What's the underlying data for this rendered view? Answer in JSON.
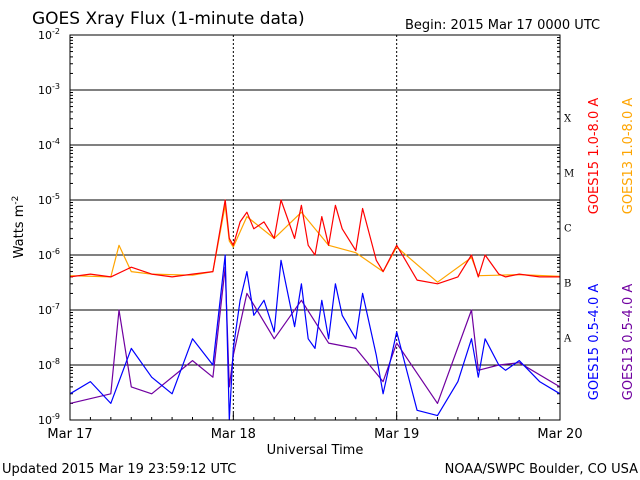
{
  "header": {
    "title": "GOES Xray Flux (1-minute data)",
    "begin": "Begin:  2015 Mar 17 0000 UTC"
  },
  "footer": {
    "updated": "Updated 2015 Mar 19 23:59:12 UTC",
    "credit": "NOAA/SWPC Boulder, CO USA"
  },
  "chart_data": {
    "type": "line",
    "title": "GOES Xray Flux (1-minute data)",
    "xlabel": "Universal Time",
    "ylabel": "Watts m",
    "ylabel_exponent": "-2",
    "yscale": "log",
    "ylim": [
      1e-09,
      0.01
    ],
    "xlim": [
      "2015-03-17T00:00",
      "2015-03-20T00:00"
    ],
    "x_ticks": [
      "Mar 17",
      "Mar 18",
      "Mar 19",
      "Mar 20"
    ],
    "y_ticks": [
      {
        "base": "10",
        "exp": "-2"
      },
      {
        "base": "10",
        "exp": "-3"
      },
      {
        "base": "10",
        "exp": "-4"
      },
      {
        "base": "10",
        "exp": "-5"
      },
      {
        "base": "10",
        "exp": "-6"
      },
      {
        "base": "10",
        "exp": "-7"
      },
      {
        "base": "10",
        "exp": "-8"
      },
      {
        "base": "10",
        "exp": "-9"
      }
    ],
    "flare_classes": [
      {
        "label": "X",
        "flux": 0.0001
      },
      {
        "label": "M",
        "flux": 1e-05
      },
      {
        "label": "C",
        "flux": 1e-06
      },
      {
        "label": "B",
        "flux": 1e-07
      },
      {
        "label": "A",
        "flux": 1e-08
      }
    ],
    "series": [
      {
        "name": "GOES15 1.0-8.0 A",
        "color": "#ff0000",
        "x": [
          "2015-03-17T00:00",
          "2015-03-17T03:00",
          "2015-03-17T06:00",
          "2015-03-17T09:00",
          "2015-03-17T12:00",
          "2015-03-17T15:00",
          "2015-03-17T18:00",
          "2015-03-17T21:00",
          "2015-03-17T22:48",
          "2015-03-17T23:24",
          "2015-03-18T00:00",
          "2015-03-18T01:00",
          "2015-03-18T02:00",
          "2015-03-18T03:00",
          "2015-03-18T04:30",
          "2015-03-18T06:00",
          "2015-03-18T07:00",
          "2015-03-18T09:00",
          "2015-03-18T10:00",
          "2015-03-18T11:00",
          "2015-03-18T12:00",
          "2015-03-18T13:00",
          "2015-03-18T14:00",
          "2015-03-18T15:00",
          "2015-03-18T16:00",
          "2015-03-18T18:00",
          "2015-03-18T19:00",
          "2015-03-18T21:00",
          "2015-03-18T22:00",
          "2015-03-19T00:00",
          "2015-03-19T03:00",
          "2015-03-19T06:00",
          "2015-03-19T09:00",
          "2015-03-19T11:00",
          "2015-03-19T12:00",
          "2015-03-19T13:00",
          "2015-03-19T15:00",
          "2015-03-19T16:00",
          "2015-03-19T18:00",
          "2015-03-19T21:00",
          "2015-03-20T00:00"
        ],
        "values": [
          4e-07,
          4.5e-07,
          4e-07,
          6e-07,
          4.5e-07,
          4e-07,
          4.5e-07,
          5e-07,
          1e-05,
          2e-06,
          1.5e-06,
          4e-06,
          6e-06,
          3e-06,
          4e-06,
          2e-06,
          1e-05,
          2e-06,
          8e-06,
          1.5e-06,
          1e-06,
          5e-06,
          1.5e-06,
          8e-06,
          3e-06,
          1.2e-06,
          7e-06,
          8e-07,
          5e-07,
          1.5e-06,
          3.5e-07,
          3e-07,
          4e-07,
          1e-06,
          4e-07,
          1e-06,
          4.5e-07,
          4e-07,
          4.5e-07,
          4e-07,
          4e-07
        ]
      },
      {
        "name": "GOES13 1.0-8.0 A",
        "color": "#ffa500",
        "x": [
          "2015-03-17T00:00",
          "2015-03-17T06:00",
          "2015-03-17T07:12",
          "2015-03-17T09:00",
          "2015-03-17T12:00",
          "2015-03-17T18:00",
          "2015-03-17T21:00",
          "2015-03-17T22:48",
          "2015-03-17T23:24",
          "2015-03-18T00:00",
          "2015-03-18T02:00",
          "2015-03-18T06:00",
          "2015-03-18T10:00",
          "2015-03-18T14:00",
          "2015-03-18T18:00",
          "2015-03-18T22:00",
          "2015-03-19T00:00",
          "2015-03-19T06:00",
          "2015-03-19T11:00",
          "2015-03-19T12:00",
          "2015-03-19T15:00",
          "2015-03-19T18:00",
          "2015-03-20T00:00"
        ],
        "values": [
          4.2e-07,
          4e-07,
          1.5e-06,
          5e-07,
          4.5e-07,
          4.3e-07,
          5e-07,
          8e-06,
          1.8e-06,
          1.4e-06,
          5e-06,
          2e-06,
          6e-06,
          1.5e-06,
          1.1e-06,
          5e-07,
          1.4e-06,
          3.2e-07,
          9e-07,
          4.2e-07,
          4.3e-07,
          4.4e-07,
          4.1e-07
        ]
      },
      {
        "name": "GOES15 0.5-4.0 A",
        "color": "#0000ff",
        "x": [
          "2015-03-17T00:00",
          "2015-03-17T03:00",
          "2015-03-17T06:00",
          "2015-03-17T09:00",
          "2015-03-17T12:00",
          "2015-03-17T15:00",
          "2015-03-17T18:00",
          "2015-03-17T21:00",
          "2015-03-17T22:48",
          "2015-03-17T23:24",
          "2015-03-18T00:00",
          "2015-03-18T01:00",
          "2015-03-18T02:00",
          "2015-03-18T03:00",
          "2015-03-18T04:30",
          "2015-03-18T06:00",
          "2015-03-18T07:00",
          "2015-03-18T09:00",
          "2015-03-18T10:00",
          "2015-03-18T11:00",
          "2015-03-18T12:00",
          "2015-03-18T13:00",
          "2015-03-18T14:00",
          "2015-03-18T15:00",
          "2015-03-18T16:00",
          "2015-03-18T18:00",
          "2015-03-18T19:00",
          "2015-03-18T21:00",
          "2015-03-18T22:00",
          "2015-03-19T00:00",
          "2015-03-19T03:00",
          "2015-03-19T06:00",
          "2015-03-19T09:00",
          "2015-03-19T11:00",
          "2015-03-19T12:00",
          "2015-03-19T13:00",
          "2015-03-19T15:00",
          "2015-03-19T16:00",
          "2015-03-19T18:00",
          "2015-03-19T21:00",
          "2015-03-20T00:00"
        ],
        "values": [
          3e-09,
          5e-09,
          2e-09,
          2e-08,
          6e-09,
          3e-09,
          3e-08,
          1e-08,
          1e-06,
          1e-09,
          2e-08,
          1.5e-07,
          5e-07,
          8e-08,
          1.5e-07,
          4e-08,
          8e-07,
          5e-08,
          3e-07,
          3e-08,
          2e-08,
          1.5e-07,
          3e-08,
          3e-07,
          8e-08,
          3e-08,
          2e-07,
          1.5e-08,
          3e-09,
          4e-08,
          1.5e-09,
          1.2e-09,
          5e-09,
          3e-08,
          6e-09,
          3e-08,
          1e-08,
          8e-09,
          1.2e-08,
          5e-09,
          3e-09
        ]
      },
      {
        "name": "GOES13 0.5-4.0 A",
        "color": "#7000a0",
        "x": [
          "2015-03-17T00:00",
          "2015-03-17T06:00",
          "2015-03-17T07:12",
          "2015-03-17T09:00",
          "2015-03-17T12:00",
          "2015-03-17T18:00",
          "2015-03-17T21:00",
          "2015-03-17T22:48",
          "2015-03-17T23:24",
          "2015-03-18T00:00",
          "2015-03-18T02:00",
          "2015-03-18T06:00",
          "2015-03-18T10:00",
          "2015-03-18T14:00",
          "2015-03-18T18:00",
          "2015-03-18T22:00",
          "2015-03-19T00:00",
          "2015-03-19T06:00",
          "2015-03-19T11:00",
          "2015-03-19T12:00",
          "2015-03-19T15:00",
          "2015-03-19T18:00",
          "2015-03-20T00:00"
        ],
        "values": [
          2e-09,
          3e-09,
          1e-07,
          4e-09,
          3e-09,
          1.2e-08,
          6e-09,
          6e-07,
          4e-09,
          1.5e-08,
          2e-07,
          3e-08,
          1.5e-07,
          2.5e-08,
          2e-08,
          5e-09,
          2.5e-08,
          2e-09,
          1e-07,
          8e-09,
          1e-08,
          1.1e-08,
          4e-09
        ]
      }
    ]
  }
}
